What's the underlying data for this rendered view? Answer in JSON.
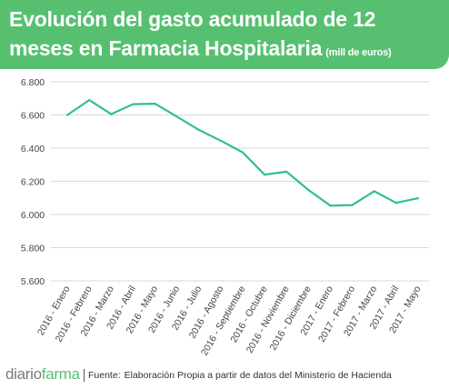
{
  "header": {
    "title_line1": "Evolución del gasto acumulado de 12",
    "title_line2": "meses en Farmacia Hospitalaria",
    "title_unit": "(mill de euros)"
  },
  "footer": {
    "brand_part1": "diario",
    "brand_part2": "farma",
    "source_label": "Fuente:",
    "source_text": "Elaboración Propia a partir de datos del Ministerio de Hacienda"
  },
  "colors": {
    "header_bg": "#56c070",
    "line": "#2fbf8f",
    "grid": "#d9d9d9"
  },
  "chart_data": {
    "type": "line",
    "title": "Evolución del gasto acumulado de 12 meses en Farmacia Hospitalaria (mill de euros)",
    "xlabel": "",
    "ylabel": "",
    "ylim": [
      5600,
      6800
    ],
    "yticks": [
      5600,
      5800,
      6000,
      6200,
      6400,
      6600,
      6800
    ],
    "ytick_labels": [
      "5.600",
      "5.800",
      "6.000",
      "6.200",
      "6.400",
      "6.600",
      "6.800"
    ],
    "grid": true,
    "legend": "none",
    "categories": [
      "2016 - Enero",
      "2016 - Febrero",
      "2016 - Marzo",
      "2016 - Abril",
      "2016 - Mayo",
      "2016 - Junio",
      "2016 - Julio",
      "2016 - Agosto",
      "2016 - Septiembre",
      "2016 - Octubre",
      "2016 - Noviembre",
      "2016 - Diciembre",
      "2017 - Enero",
      "2017 - Febrero",
      "2017 - Marzo",
      "2017 - Abril",
      "2017 - Mayo"
    ],
    "series": [
      {
        "values": [
          6600,
          6690,
          6605,
          6665,
          6668,
          6590,
          6510,
          6445,
          6375,
          6240,
          6258,
          6148,
          6053,
          6057,
          6140,
          6070,
          6098
        ]
      }
    ]
  }
}
